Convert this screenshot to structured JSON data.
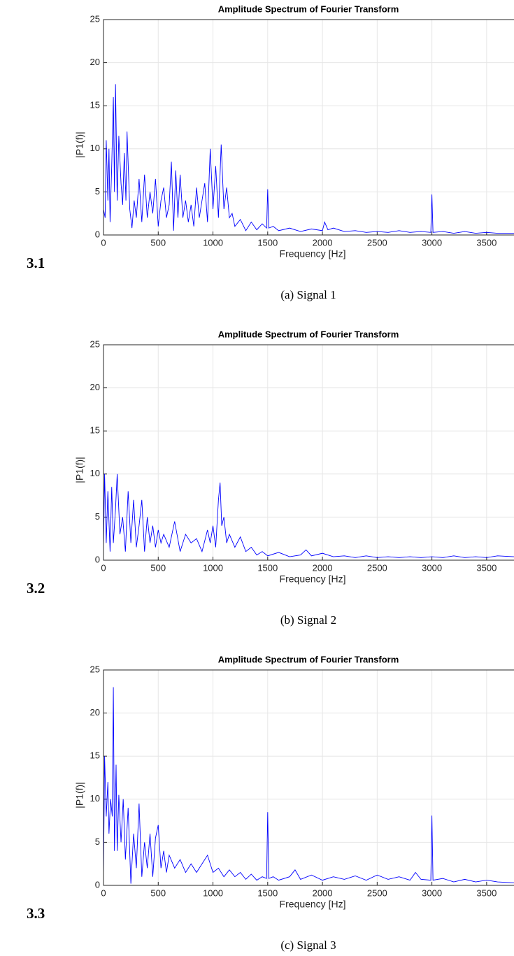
{
  "chart_data": [
    {
      "type": "line",
      "title": "Amplitude Spectrum of Fourier Transform",
      "x_label": "Frequency [Hz]",
      "y_label": "|P1(f)|",
      "color": "#0000ff",
      "grid": true,
      "xlim": [
        0,
        3750
      ],
      "ylim": [
        0,
        25
      ],
      "xticks": [
        0,
        500,
        1000,
        1500,
        2000,
        2500,
        3000,
        3500
      ],
      "yticks": [
        0,
        5,
        10,
        15,
        20,
        25
      ],
      "x": [
        0,
        15,
        25,
        40,
        50,
        60,
        75,
        90,
        100,
        110,
        125,
        140,
        160,
        175,
        190,
        205,
        215,
        240,
        260,
        280,
        300,
        325,
        350,
        375,
        400,
        425,
        450,
        475,
        500,
        525,
        550,
        575,
        600,
        620,
        640,
        660,
        680,
        700,
        725,
        750,
        775,
        800,
        825,
        850,
        875,
        900,
        925,
        950,
        975,
        1000,
        1025,
        1050,
        1075,
        1100,
        1125,
        1150,
        1175,
        1200,
        1250,
        1300,
        1350,
        1400,
        1450,
        1490,
        1500,
        1510,
        1550,
        1600,
        1700,
        1800,
        1900,
        2000,
        2020,
        2050,
        2100,
        2200,
        2300,
        2400,
        2500,
        2600,
        2700,
        2800,
        2900,
        2990,
        3000,
        3010,
        3100,
        3200,
        3300,
        3400,
        3500,
        3600,
        3750
      ],
      "values": [
        3,
        2,
        11,
        4,
        10,
        1.5,
        8,
        16,
        5,
        17.5,
        4,
        11.5,
        6,
        3.5,
        9.5,
        4,
        12,
        3,
        0.8,
        4,
        2,
        6.5,
        1.5,
        7,
        2,
        5,
        2.5,
        6.5,
        1,
        4,
        5.5,
        2,
        3.5,
        8.5,
        0.5,
        7.5,
        2,
        7,
        2,
        4,
        1.5,
        3.5,
        1,
        5.5,
        2,
        4,
        6,
        1.5,
        10,
        3,
        8,
        2,
        10.5,
        3,
        5.5,
        2,
        2.5,
        1,
        1.8,
        0.5,
        1.5,
        0.6,
        1.3,
        0.8,
        5.3,
        0.8,
        1,
        0.5,
        0.8,
        0.4,
        0.7,
        0.5,
        1.5,
        0.6,
        0.8,
        0.4,
        0.5,
        0.3,
        0.4,
        0.3,
        0.5,
        0.3,
        0.4,
        0.3,
        4.7,
        0.3,
        0.4,
        0.2,
        0.4,
        0.2,
        0.3,
        0.2,
        0.2
      ]
    },
    {
      "type": "line",
      "title": "Amplitude Spectrum of Fourier Transform",
      "x_label": "Frequency [Hz]",
      "y_label": "|P1(f)|",
      "color": "#0000ff",
      "grid": true,
      "xlim": [
        0,
        3750
      ],
      "ylim": [
        0,
        25
      ],
      "xticks": [
        0,
        500,
        1000,
        1500,
        2000,
        2500,
        3000,
        3500
      ],
      "yticks": [
        0,
        5,
        10,
        15,
        20,
        25
      ],
      "x": [
        0,
        10,
        25,
        40,
        60,
        75,
        90,
        110,
        125,
        150,
        175,
        200,
        225,
        250,
        275,
        300,
        325,
        350,
        375,
        400,
        425,
        450,
        475,
        500,
        525,
        550,
        600,
        650,
        700,
        750,
        800,
        850,
        900,
        950,
        975,
        1000,
        1025,
        1050,
        1065,
        1080,
        1100,
        1125,
        1150,
        1200,
        1250,
        1300,
        1350,
        1400,
        1450,
        1500,
        1600,
        1700,
        1800,
        1850,
        1900,
        2000,
        2100,
        2200,
        2300,
        2400,
        2500,
        2600,
        2700,
        2800,
        2900,
        3000,
        3100,
        3200,
        3300,
        3400,
        3500,
        3600,
        3750
      ],
      "values": [
        1.5,
        10,
        2,
        8,
        1,
        8.5,
        2,
        6,
        10,
        3,
        5,
        1,
        8,
        2,
        7,
        1.5,
        4,
        7,
        1,
        5,
        2,
        4,
        1.5,
        3.5,
        2,
        3,
        1.5,
        4.5,
        1,
        3,
        2,
        2.5,
        1,
        3.5,
        2,
        4,
        1.5,
        7,
        9,
        4,
        5,
        2,
        3,
        1.5,
        2.7,
        1,
        1.5,
        0.6,
        1,
        0.5,
        0.9,
        0.4,
        0.6,
        1.2,
        0.5,
        0.8,
        0.4,
        0.5,
        0.3,
        0.5,
        0.3,
        0.4,
        0.3,
        0.4,
        0.3,
        0.4,
        0.3,
        0.5,
        0.3,
        0.4,
        0.3,
        0.5,
        0.4
      ]
    },
    {
      "type": "line",
      "title": "Amplitude Spectrum of Fourier Transform",
      "x_label": "Frequency [Hz]",
      "y_label": "|P1(f)|",
      "color": "#0000ff",
      "grid": true,
      "xlim": [
        0,
        3750
      ],
      "ylim": [
        0,
        25
      ],
      "xticks": [
        0,
        500,
        1000,
        1500,
        2000,
        2500,
        3000,
        3500
      ],
      "yticks": [
        0,
        5,
        10,
        15,
        20,
        25
      ],
      "x": [
        0,
        10,
        25,
        40,
        50,
        65,
        80,
        90,
        100,
        115,
        125,
        140,
        160,
        180,
        200,
        225,
        250,
        275,
        300,
        325,
        350,
        375,
        400,
        425,
        450,
        475,
        500,
        525,
        550,
        575,
        600,
        650,
        700,
        750,
        800,
        850,
        900,
        950,
        1000,
        1050,
        1100,
        1150,
        1200,
        1250,
        1300,
        1350,
        1400,
        1450,
        1490,
        1500,
        1510,
        1550,
        1600,
        1700,
        1750,
        1800,
        1900,
        2000,
        2100,
        2200,
        2300,
        2400,
        2500,
        2600,
        2700,
        2800,
        2850,
        2900,
        2990,
        3000,
        3010,
        3100,
        3200,
        3300,
        3400,
        3500,
        3600,
        3750
      ],
      "values": [
        1,
        15,
        8,
        12,
        6,
        10,
        8,
        23,
        4,
        14,
        4,
        10.5,
        5,
        10,
        3,
        9,
        0.2,
        6,
        2,
        9.5,
        1,
        5,
        2,
        6,
        1,
        5.5,
        7,
        2,
        4,
        1.5,
        3.5,
        2,
        3,
        1.5,
        2.5,
        1.5,
        2.5,
        3.5,
        1.5,
        2,
        1,
        1.8,
        1,
        1.5,
        0.7,
        1.3,
        0.6,
        1,
        0.8,
        8.5,
        0.8,
        1,
        0.6,
        1,
        1.8,
        0.7,
        1.2,
        0.6,
        1,
        0.7,
        1.1,
        0.6,
        1.2,
        0.7,
        1,
        0.6,
        1.5,
        0.7,
        0.6,
        8.1,
        0.6,
        0.8,
        0.4,
        0.7,
        0.4,
        0.6,
        0.4,
        0.3
      ]
    }
  ],
  "panels": [
    {
      "label": "3.1",
      "caption": "(a) Signal 1"
    },
    {
      "label": "3.2",
      "caption": "(b) Signal 2"
    },
    {
      "label": "3.3",
      "caption": "(c) Signal 3"
    }
  ]
}
